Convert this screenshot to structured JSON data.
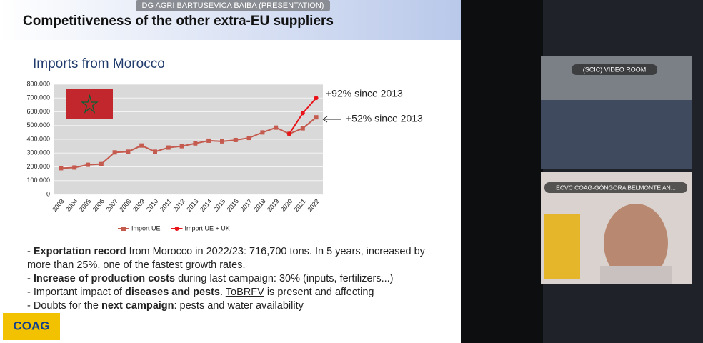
{
  "presenter_banner": "DG AGRI BARTUSEVICA BAIBA (PRESENTATION)",
  "slide": {
    "title": "Competitiveness of the other extra-EU suppliers",
    "chart_data": {
      "type": "line",
      "title": "Imports from Morocco",
      "categories": [
        "2003",
        "2004",
        "2005",
        "2006",
        "2007",
        "2008",
        "2009",
        "2010",
        "2011",
        "2012",
        "2013",
        "2014",
        "2015",
        "2016",
        "2017",
        "2018",
        "2019",
        "2020",
        "2021",
        "2022"
      ],
      "series": [
        {
          "name": "Import UE",
          "color": "#c55a4e",
          "marker": "square",
          "values": [
            190000,
            195000,
            215000,
            220000,
            305000,
            310000,
            355000,
            310000,
            340000,
            350000,
            370000,
            390000,
            385000,
            395000,
            410000,
            450000,
            485000,
            440000,
            480000,
            560000
          ]
        },
        {
          "name": "Import UE + UK",
          "color": "#e8141a",
          "marker": "circle",
          "values": [
            null,
            null,
            null,
            null,
            null,
            null,
            null,
            null,
            null,
            null,
            null,
            null,
            null,
            null,
            null,
            null,
            null,
            440000,
            590000,
            700000
          ]
        }
      ],
      "ylim": [
        0,
        800000
      ],
      "yticks": [
        0,
        {
          "value": 100000,
          "label": "100.000"
        },
        {
          "value": 200000,
          "label": "200.000"
        },
        {
          "value": 300000,
          "label": "300.000"
        },
        {
          "value": 400000,
          "label": "400.000"
        },
        {
          "value": 500000,
          "label": "500.000"
        },
        {
          "value": 600000,
          "label": "600.000"
        },
        {
          "value": 700000,
          "label": "700.000"
        },
        {
          "value": 800000,
          "label": "800.000"
        }
      ],
      "grid": true,
      "legend": "bottom",
      "annotations": [
        "+92% since 2013",
        "+52% since 2013"
      ]
    },
    "bullets": [
      {
        "parts": [
          {
            "text": "- "
          },
          {
            "text": "Exportation record",
            "bold": true
          },
          {
            "text": " from Morocco in 2022/23: 716,700 tons. In 5 years, increased by more than 25%, one of the fastest growth rates."
          }
        ]
      },
      {
        "parts": [
          {
            "text": "- "
          },
          {
            "text": "Increase of production costs",
            "bold": true
          },
          {
            "text": " during last campaign: 30% (inputs, fertilizers...)"
          }
        ]
      },
      {
        "parts": [
          {
            "text": "- Important impact of "
          },
          {
            "text": "diseases and pests",
            "bold": true
          },
          {
            "text": ". "
          },
          {
            "text": "ToBRFV",
            "underline": true
          },
          {
            "text": " is present and affecting"
          }
        ]
      },
      {
        "parts": [
          {
            "text": "- Doubts for the "
          },
          {
            "text": "next campaign",
            "bold": true
          },
          {
            "text": ": pests and water availability"
          }
        ]
      }
    ],
    "logo": "COAG"
  },
  "participants": [
    {
      "label": "(SCIC) VIDEO ROOM"
    },
    {
      "label": "ECVC COAG-GÓNGORA BELMONTE AN..."
    }
  ]
}
